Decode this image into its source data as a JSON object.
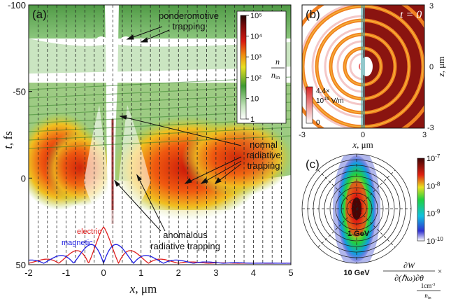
{
  "panel_a": {
    "label": "(a)",
    "xlabel_var": "x",
    "xlabel_unit": ", μm",
    "ylabel_var": "t",
    "ylabel_unit": ", fs",
    "x_ticks": [
      "-2",
      "-1",
      "0",
      "1",
      "2",
      "3",
      "4",
      "5"
    ],
    "y_ticks": [
      "-100",
      "-50",
      "0",
      "50"
    ],
    "annotations": {
      "ponderomotive_1": "ponderomotive",
      "ponderomotive_2": "trapping",
      "normal_1": "normal",
      "normal_2": "radiative",
      "normal_3": "trapping",
      "anomalous_1": "anomalous",
      "anomalous_2": "radiative trapping",
      "electric": "electric",
      "magnetic": "magnetic"
    },
    "colorbar": {
      "ticks": [
        "10",
        "10",
        "10",
        "10",
        "10",
        "1"
      ],
      "exponents": [
        "5",
        "4",
        "3",
        "2",
        "",
        ""
      ],
      "ticks_plain": [
        "10⁵",
        "10⁴",
        "10³",
        "10²",
        "10",
        "1"
      ],
      "label_num": "n",
      "label_den": "n",
      "label_den_sub": "in"
    }
  },
  "panel_b": {
    "label": "(b)",
    "time_label": "t = 0",
    "x_ticks": [
      "-3",
      "0",
      "3"
    ],
    "z_ticks": [
      "3",
      "0",
      "-3"
    ],
    "xlabel_var": "x",
    "xlabel_unit": ", μm",
    "zlabel_var": "z",
    "zlabel_unit": ", μm",
    "cb_label_1": "4.4×",
    "cb_label_2": "10",
    "cb_label_2_exp": "16",
    "cb_label_2_unit": " V/m",
    "cb_zero": "0"
  },
  "panel_c": {
    "label": "(c)",
    "ring_label_1": "1 GeV",
    "ring_label_10": "10 GeV",
    "colorbar_ticks_base": [
      "10",
      "10",
      "10",
      "10"
    ],
    "colorbar_ticks_exp": [
      "-7",
      "-8",
      "-9",
      "-10"
    ],
    "formula_num": "∂W",
    "formula_den": "∂(ℏω)∂θ",
    "formula_times": "×",
    "formula_unit_num": "1cm",
    "formula_unit_num_exp": "-3",
    "formula_unit_den": "n",
    "formula_unit_den_sub": "in"
  },
  "chart_data": [
    {
      "type": "heatmap",
      "panel": "(a)",
      "xlim": [
        -2,
        5
      ],
      "ylim": [
        -100,
        50
      ],
      "x_ticks": [
        -2,
        -1,
        0,
        1,
        2,
        3,
        4,
        5
      ],
      "y_ticks": [
        -100,
        -50,
        0,
        50
      ],
      "colorbar_range": [
        1,
        100000
      ],
      "colorbar_scale": "log",
      "dashed_verticals": [
        -1.75,
        -1.5,
        -1.25,
        -1.0,
        -0.75,
        -0.5,
        -0.25,
        0,
        0.25,
        0.5,
        0.75,
        1.0,
        1.25,
        1.5,
        1.75,
        2.0,
        2.25,
        2.5,
        2.75,
        3.0,
        3.25,
        3.5,
        3.75,
        4.0,
        4.25,
        4.5,
        4.75
      ],
      "field_profiles": {
        "electric_color": "#e02020",
        "magnetic_color": "#2020e0"
      }
    },
    {
      "type": "heatmap",
      "panel": "(b)",
      "xlim": [
        -3,
        3
      ],
      "ylim": [
        -3,
        3
      ],
      "grid": false
    },
    {
      "type": "heatmap",
      "panel": "(c)",
      "projection": "polar",
      "colorbar_range": [
        1e-10,
        1e-07
      ],
      "colorbar_scale": "log"
    }
  ]
}
